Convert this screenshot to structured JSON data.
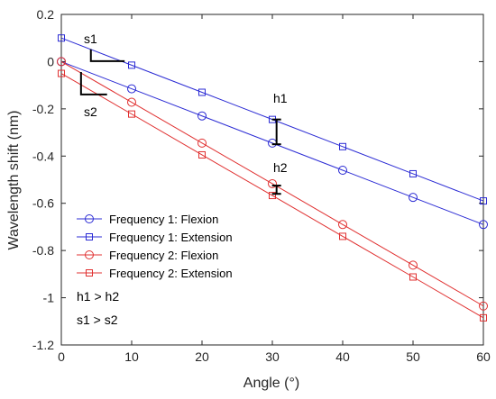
{
  "chart_data": {
    "type": "line",
    "xlabel": "Angle (°)",
    "ylabel": "Wavelength shift (nm)",
    "xlim": [
      0,
      60
    ],
    "ylim": [
      -1.2,
      0.2
    ],
    "xticks": [
      0,
      10,
      20,
      30,
      40,
      50,
      60
    ],
    "yticks": [
      0.2,
      0,
      -0.2,
      -0.4,
      -0.6,
      -0.8,
      -1,
      -1.2
    ],
    "ytick_labels": [
      "0.2",
      "0",
      "-0.2",
      "-0.4",
      "-0.6",
      "-0.8",
      "-1",
      "-1.2"
    ],
    "grid": false,
    "legend_position": "lower-left",
    "x": [
      0,
      10,
      20,
      30,
      40,
      50,
      60
    ],
    "series": [
      {
        "name": "Frequency 1: Flexion",
        "color": "#2b2bd4",
        "marker": "circle",
        "values": [
          0,
          -0.115,
          -0.23,
          -0.345,
          -0.46,
          -0.575,
          -0.69
        ]
      },
      {
        "name": "Frequency 1: Extension",
        "color": "#2b2bd4",
        "marker": "square",
        "values": [
          0.1,
          -0.015,
          -0.13,
          -0.245,
          -0.36,
          -0.475,
          -0.59
        ]
      },
      {
        "name": "Frequency 2: Flexion",
        "color": "#e03030",
        "marker": "circle",
        "values": [
          0,
          -0.172,
          -0.345,
          -0.517,
          -0.69,
          -0.862,
          -1.035
        ]
      },
      {
        "name": "Frequency 2: Extension",
        "color": "#e03030",
        "marker": "square",
        "values": [
          -0.05,
          -0.222,
          -0.395,
          -0.567,
          -0.74,
          -0.912,
          -1.085
        ]
      }
    ],
    "annotations": {
      "h1": "h1",
      "h2": "h2",
      "s1": "s1",
      "s2": "s2",
      "h_compare": "h1 > h2",
      "s_compare": "s1 > s2"
    }
  }
}
